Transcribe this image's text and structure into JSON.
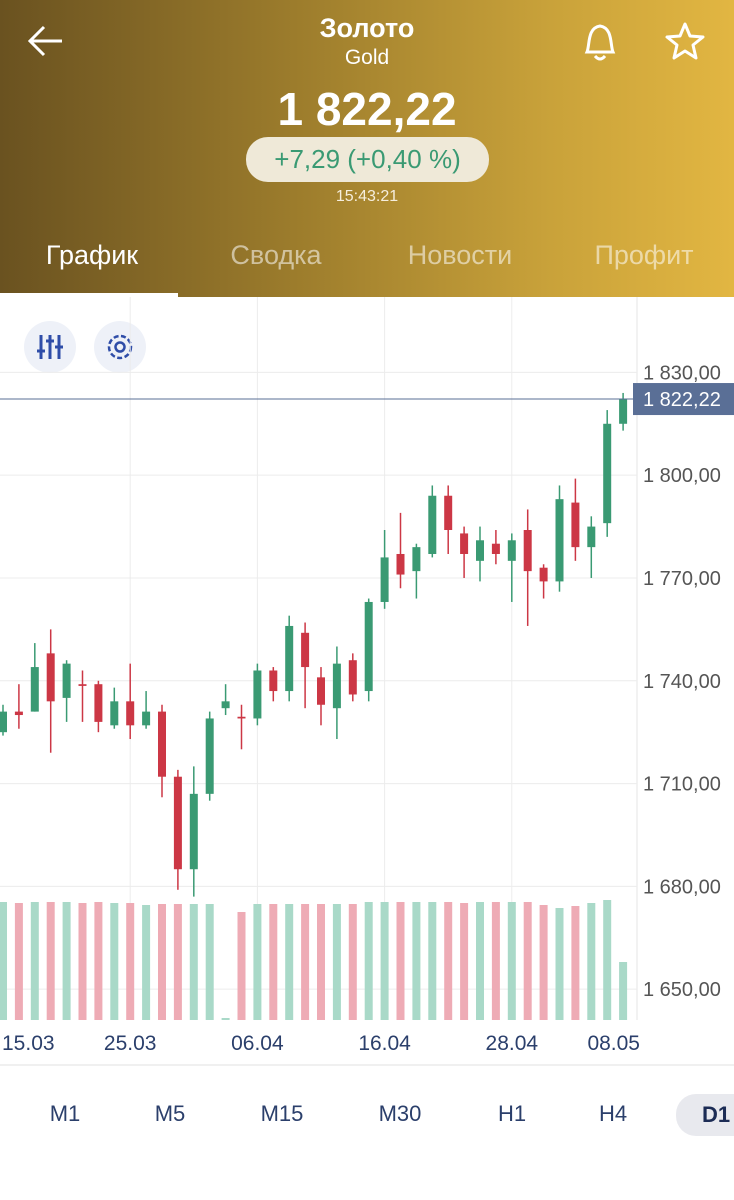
{
  "header": {
    "title": "Золото",
    "subtitle": "Gold",
    "price": "1 822,22",
    "change": "+7,29 (+0,40 %)",
    "time": "15:43:21"
  },
  "tabs": {
    "items": [
      "График",
      "Сводка",
      "Новости",
      "Профит"
    ],
    "active_index": 0
  },
  "timeframes": {
    "items": [
      "M1",
      "M5",
      "M15",
      "M30",
      "H1",
      "H4",
      "D1"
    ],
    "selected_index": 6
  },
  "chart_data": {
    "type": "candlestick",
    "categories": [
      "15.03",
      null,
      null,
      null,
      null,
      null,
      null,
      null,
      "25.03",
      null,
      null,
      null,
      null,
      null,
      null,
      null,
      "06.04",
      null,
      null,
      null,
      null,
      null,
      null,
      null,
      "16.04",
      null,
      null,
      null,
      null,
      null,
      null,
      null,
      "28.04",
      null,
      null,
      null,
      null,
      null,
      null,
      "08.05"
    ],
    "open": [
      1725,
      1731,
      1731,
      1748,
      1735,
      1739,
      1739,
      1727,
      1734,
      1727,
      1731,
      1712,
      1685,
      1707,
      1732,
      1729.5,
      1729,
      1743,
      1737,
      1754,
      1741,
      1732,
      1746,
      1737,
      1763,
      1777,
      1772,
      1777,
      1794,
      1783,
      1775,
      1780,
      1775,
      1784,
      1773,
      1769,
      1792,
      1779,
      1786,
      1815
    ],
    "high": [
      1733,
      1739,
      1751,
      1755,
      1746,
      1743,
      1740,
      1738,
      1745,
      1737,
      1733,
      1714,
      1715,
      1731,
      1739,
      1733,
      1745,
      1744,
      1759,
      1757,
      1744,
      1750,
      1748,
      1764,
      1784,
      1789,
      1780,
      1797,
      1797,
      1785,
      1785,
      1784,
      1783,
      1790,
      1774,
      1797,
      1799,
      1788,
      1819,
      1824
    ],
    "low": [
      1724,
      1726,
      1731,
      1719,
      1728,
      1728,
      1725,
      1726,
      1723,
      1726,
      1706,
      1679,
      1677,
      1705,
      1730,
      1720,
      1727,
      1734,
      1734,
      1732,
      1727,
      1723,
      1734,
      1734,
      1761,
      1767,
      1764,
      1776,
      1777,
      1770,
      1769,
      1774,
      1763,
      1756,
      1764,
      1766,
      1775,
      1770,
      1782,
      1813
    ],
    "close": [
      1731,
      1730,
      1744,
      1734,
      1745,
      1738.5,
      1728,
      1734,
      1727,
      1731,
      1712,
      1685,
      1707,
      1729,
      1734,
      1729,
      1743,
      1737,
      1756,
      1744,
      1733,
      1745,
      1736,
      1763,
      1776,
      1771,
      1779,
      1794,
      1784,
      1777,
      1781,
      1777,
      1781,
      1772,
      1769,
      1793,
      1779,
      1785,
      1815,
      1822.22
    ],
    "volume": [
      118,
      117,
      118,
      118,
      118,
      117,
      118,
      117,
      117,
      115,
      116,
      116,
      116,
      116,
      2,
      108,
      116,
      116,
      116,
      116,
      116,
      116,
      116,
      118,
      118,
      118,
      118,
      118,
      118,
      117,
      118,
      118,
      118,
      118,
      115,
      112,
      114,
      117,
      120,
      58
    ],
    "up_color": "#3a9a73",
    "down_color": "#cc3745",
    "up_volume_color": "#a9d9c8",
    "down_volume_color": "#eeabb5",
    "current": {
      "value": 1822.22,
      "label": "1 822,22"
    },
    "ylim": [
      1641,
      1852
    ],
    "yticks": [
      {
        "value": 1830,
        "label": "1 830,00"
      },
      {
        "value": 1800,
        "label": "1 800,00"
      },
      {
        "value": 1770,
        "label": "1 770,00"
      },
      {
        "value": 1740,
        "label": "1 740,00"
      },
      {
        "value": 1710,
        "label": "1 710,00"
      },
      {
        "value": 1680,
        "label": "1 680,00"
      },
      {
        "value": 1650,
        "label": "1 650,00"
      }
    ],
    "grid": true
  }
}
